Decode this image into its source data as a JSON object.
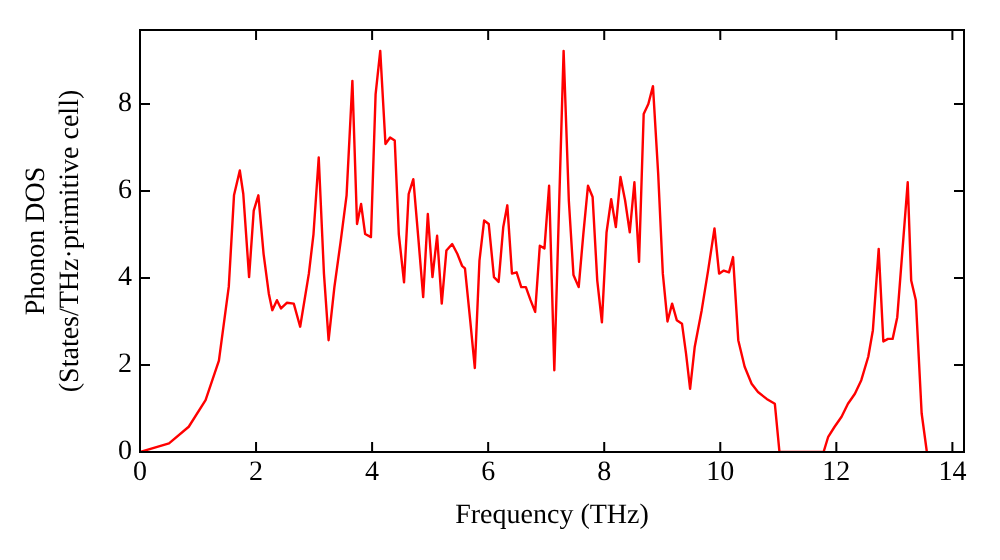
{
  "chart_data": {
    "type": "line",
    "xlabel": "Frequency (THz)",
    "ylabel": "Phonon DOS\n(States/THz·primitive cell)",
    "x": [
      0,
      0.5,
      0.84,
      1.13,
      1.36,
      1.53,
      1.62,
      1.72,
      1.78,
      1.88,
      1.96,
      2.04,
      2.13,
      2.22,
      2.28,
      2.36,
      2.43,
      2.53,
      2.65,
      2.76,
      2.91,
      2.99,
      3.08,
      3.17,
      3.25,
      3.35,
      3.46,
      3.56,
      3.66,
      3.74,
      3.81,
      3.88,
      3.98,
      4.06,
      4.14,
      4.23,
      4.31,
      4.39,
      4.46,
      4.55,
      4.63,
      4.71,
      4.8,
      4.88,
      4.96,
      5.04,
      5.12,
      5.2,
      5.28,
      5.38,
      5.47,
      5.55,
      5.6,
      5.69,
      5.77,
      5.85,
      5.93,
      6.01,
      6.1,
      6.18,
      6.26,
      6.33,
      6.41,
      6.49,
      6.57,
      6.65,
      6.73,
      6.81,
      6.89,
      6.97,
      7.05,
      7.14,
      7.3,
      7.39,
      7.47,
      7.56,
      7.64,
      7.72,
      7.8,
      7.88,
      7.96,
      8.04,
      8.12,
      8.2,
      8.28,
      8.36,
      8.44,
      8.52,
      8.6,
      8.68,
      8.76,
      8.84,
      8.93,
      9.01,
      9.09,
      9.17,
      9.25,
      9.34,
      9.41,
      9.48,
      9.56,
      9.68,
      9.79,
      9.9,
      9.98,
      10.06,
      10.15,
      10.22,
      10.31,
      10.42,
      10.54,
      10.65,
      10.8,
      10.94,
      11.02,
      11.78,
      11.86,
      11.97,
      12.09,
      12.2,
      12.32,
      12.43,
      12.55,
      12.63,
      12.73,
      12.81,
      12.89,
      12.97,
      13.05,
      13.23,
      13.29,
      13.37,
      13.47,
      13.56
    ],
    "series": [
      {
        "color": "#ff0000",
        "values": [
          0,
          0.2,
          0.58,
          1.19,
          2.1,
          3.8,
          5.9,
          6.47,
          5.93,
          4.02,
          5.55,
          5.9,
          4.55,
          3.64,
          3.26,
          3.49,
          3.3,
          3.43,
          3.41,
          2.88,
          4.1,
          5.01,
          6.77,
          4.1,
          2.57,
          3.79,
          4.86,
          5.9,
          8.53,
          5.24,
          5.7,
          5.01,
          4.94,
          8.22,
          9.22,
          7.08,
          7.23,
          7.16,
          5.01,
          3.9,
          5.93,
          6.27,
          4.86,
          3.56,
          5.47,
          4.02,
          4.97,
          3.41,
          4.63,
          4.78,
          4.55,
          4.28,
          4.22,
          3.03,
          1.93,
          4.4,
          5.32,
          5.24,
          4.02,
          3.91,
          5.17,
          5.67,
          4.1,
          4.13,
          3.79,
          3.79,
          3.49,
          3.22,
          4.74,
          4.68,
          6.12,
          1.88,
          9.22,
          5.78,
          4.07,
          3.79,
          5.01,
          6.12,
          5.86,
          3.94,
          2.98,
          5.05,
          5.81,
          5.17,
          6.32,
          5.78,
          5.05,
          6.2,
          4.37,
          7.77,
          8.0,
          8.41,
          6.39,
          4.1,
          3.0,
          3.41,
          3.03,
          2.95,
          2.26,
          1.45,
          2.42,
          3.26,
          4.17,
          5.14,
          4.1,
          4.17,
          4.13,
          4.48,
          2.57,
          1.96,
          1.57,
          1.38,
          1.22,
          1.11,
          0,
          0,
          0.35,
          0.58,
          0.81,
          1.11,
          1.34,
          1.65,
          2.19,
          2.8,
          4.67,
          2.54,
          2.6,
          2.6,
          3.1,
          6.2,
          3.94,
          3.49,
          0.89,
          0
        ]
      }
    ],
    "xlim": [
      0,
      14.2
    ],
    "ylim": [
      0,
      9.7
    ],
    "xticks": [
      0,
      2,
      4,
      6,
      8,
      10,
      12,
      14
    ],
    "yticks": [
      0,
      2,
      4,
      6,
      8
    ],
    "grid": false,
    "legend": false,
    "marker": "none",
    "line_style": "solid"
  }
}
